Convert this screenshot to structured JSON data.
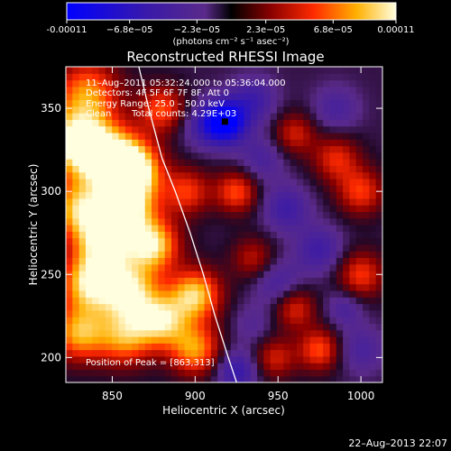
{
  "chart_data": {
    "type": "heatmap",
    "title": "Reconstructed RHESSI Image",
    "xlabel": "Heliocentric X (arcsec)",
    "ylabel": "Heliocentric Y (arcsec)",
    "xlim": [
      822,
      1013
    ],
    "ylim": [
      185,
      375
    ],
    "xticks": [
      "850",
      "900",
      "950",
      "1000"
    ],
    "xtick_values": [
      850,
      900,
      950,
      1000
    ],
    "yticks": [
      "200",
      "250",
      "300",
      "350"
    ],
    "ytick_values": [
      200,
      250,
      300,
      350
    ],
    "colorbar": {
      "labels": [
        "-0.00011",
        "−6.8e−05",
        "−2.3e−05",
        "2.3e−05",
        "6.8e−05",
        "0.00011"
      ],
      "values": [
        -0.00011,
        -6.8e-05,
        -2.3e-05,
        2.3e-05,
        6.8e-05,
        0.00011
      ],
      "units": "(photons cm⁻² s⁻¹ asec⁻²)",
      "min": -0.00011,
      "max": 0.00011
    },
    "annotations": {
      "time": "11–Aug–2011 05:32:24.000 to 05:36:04.000",
      "detectors": "Detectors: 4F 5F 6F 7F 8F, Att 0",
      "energy": "Energy Range: 25.0 – 50.0 keV",
      "clean": "Clean",
      "counts": "Total counts: 4.29E+03",
      "peak": "Position of Peak = [863,313]"
    },
    "peak_position": [
      863,
      313
    ],
    "limb": [
      [
        866,
        375
      ],
      [
        872,
        350
      ],
      [
        880,
        320
      ],
      [
        888,
        300
      ],
      [
        897,
        275
      ],
      [
        905,
        250
      ],
      [
        912,
        225
      ],
      [
        920,
        200
      ],
      [
        925,
        185
      ]
    ],
    "blobs": [
      {
        "x": 828,
        "y": 330,
        "v": 1.0,
        "s": 14
      },
      {
        "x": 848,
        "y": 320,
        "v": 0.9,
        "s": 14
      },
      {
        "x": 863,
        "y": 313,
        "v": 1.0,
        "s": 12
      },
      {
        "x": 835,
        "y": 360,
        "v": 0.7,
        "s": 14
      },
      {
        "x": 860,
        "y": 290,
        "v": 0.85,
        "s": 12
      },
      {
        "x": 830,
        "y": 290,
        "v": 0.8,
        "s": 12
      },
      {
        "x": 845,
        "y": 270,
        "v": 0.95,
        "s": 13
      },
      {
        "x": 875,
        "y": 268,
        "v": 0.9,
        "s": 11
      },
      {
        "x": 835,
        "y": 245,
        "v": 0.85,
        "s": 12
      },
      {
        "x": 860,
        "y": 240,
        "v": 0.95,
        "s": 13
      },
      {
        "x": 900,
        "y": 238,
        "v": 0.9,
        "s": 11
      },
      {
        "x": 880,
        "y": 222,
        "v": 0.8,
        "s": 11
      },
      {
        "x": 830,
        "y": 215,
        "v": 0.8,
        "s": 12
      },
      {
        "x": 858,
        "y": 212,
        "v": 0.7,
        "s": 12
      },
      {
        "x": 900,
        "y": 205,
        "v": 0.75,
        "s": 11
      },
      {
        "x": 880,
        "y": 350,
        "v": 0.6,
        "s": 10
      },
      {
        "x": 895,
        "y": 300,
        "v": 0.55,
        "s": 10
      },
      {
        "x": 905,
        "y": 340,
        "v": -0.3,
        "s": 10
      },
      {
        "x": 918,
        "y": 342,
        "v": -1.0,
        "s": 9
      },
      {
        "x": 935,
        "y": 355,
        "v": -0.4,
        "s": 10
      },
      {
        "x": 925,
        "y": 300,
        "v": 0.6,
        "s": 9
      },
      {
        "x": 940,
        "y": 320,
        "v": -0.3,
        "s": 10
      },
      {
        "x": 955,
        "y": 290,
        "v": -0.4,
        "s": 10
      },
      {
        "x": 960,
        "y": 335,
        "v": 0.45,
        "s": 9
      },
      {
        "x": 985,
        "y": 320,
        "v": 0.5,
        "s": 10
      },
      {
        "x": 1000,
        "y": 300,
        "v": 0.55,
        "s": 10
      },
      {
        "x": 985,
        "y": 350,
        "v": -0.3,
        "s": 10
      },
      {
        "x": 935,
        "y": 260,
        "v": 0.4,
        "s": 9
      },
      {
        "x": 950,
        "y": 245,
        "v": -0.35,
        "s": 10
      },
      {
        "x": 975,
        "y": 265,
        "v": -0.4,
        "s": 10
      },
      {
        "x": 1000,
        "y": 250,
        "v": 0.55,
        "s": 10
      },
      {
        "x": 960,
        "y": 230,
        "v": 0.5,
        "s": 9
      },
      {
        "x": 935,
        "y": 220,
        "v": -0.2,
        "s": 9
      },
      {
        "x": 975,
        "y": 205,
        "v": 0.6,
        "s": 9
      },
      {
        "x": 1000,
        "y": 205,
        "v": -0.3,
        "s": 10
      },
      {
        "x": 948,
        "y": 200,
        "v": 0.45,
        "s": 9
      },
      {
        "x": 925,
        "y": 192,
        "v": -0.5,
        "s": 9
      },
      {
        "x": 990,
        "y": 230,
        "v": -0.3,
        "s": 8
      }
    ]
  },
  "footer": {
    "timestamp": "22–Aug–2013 22:07"
  }
}
